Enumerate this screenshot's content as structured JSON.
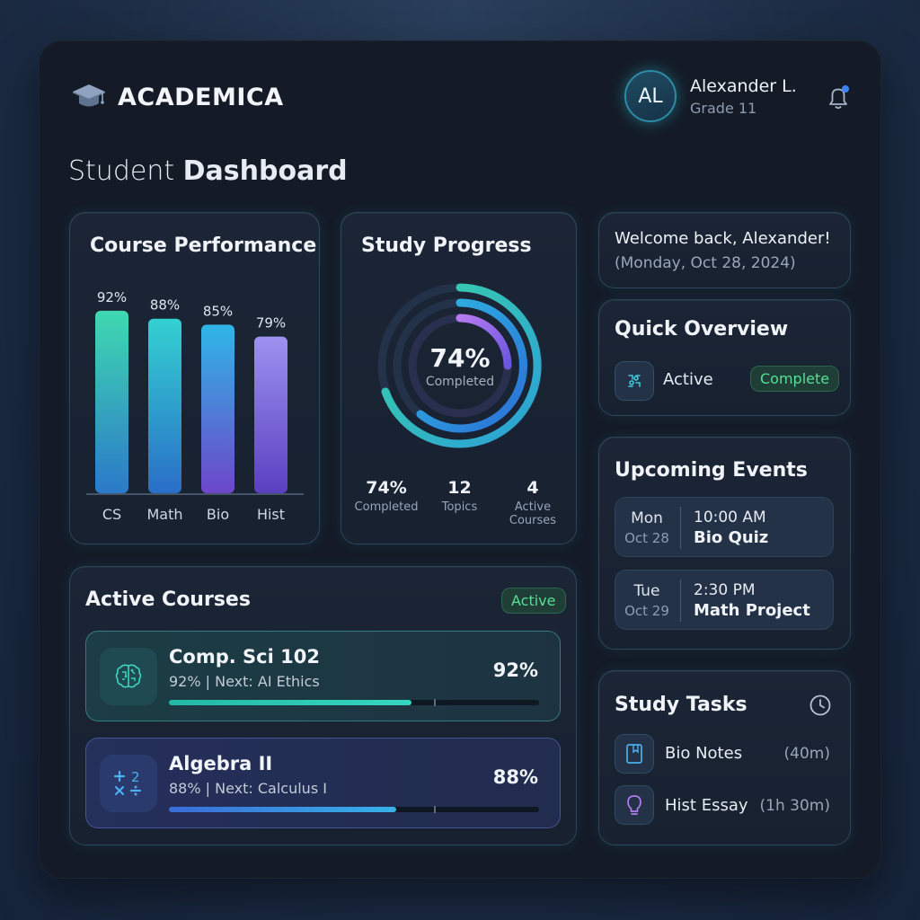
{
  "header": {
    "brand": "ACADEMICA",
    "user_initials": "AL",
    "user_name": "Alexander L.",
    "user_grade": "Grade 11",
    "notification_dot_color": "#3b82f6"
  },
  "page": {
    "title_light": "Student",
    "title_bold": "Dashboard"
  },
  "course_performance": {
    "title": "Course Performance",
    "chart_data": {
      "type": "bar",
      "categories": [
        "CS",
        "Math",
        "Bio",
        "Hist"
      ],
      "values": [
        92,
        88,
        85,
        79
      ],
      "value_labels": [
        "92%",
        "88%",
        "85%",
        "79%"
      ],
      "ylim": [
        0,
        100
      ],
      "bar_colors": [
        [
          "#3fd9b0",
          "#2b79c9"
        ],
        [
          "#33d1d1",
          "#2a6ec7"
        ],
        [
          "#2fb6e6",
          "#6d46c9"
        ],
        [
          "#9c92f0",
          "#5a3fc0"
        ]
      ]
    }
  },
  "study_progress": {
    "title": "Study Progress",
    "ring_percent": 74,
    "ring_value": "74%",
    "ring_label": "Completed",
    "stats": [
      {
        "value": "74%",
        "label": "Completed"
      },
      {
        "value": "12",
        "label": "Topics"
      },
      {
        "value": "4",
        "label": "Active Courses"
      }
    ]
  },
  "welcome": {
    "line": "Welcome back, Alexander!",
    "date": "(Monday, Oct 28, 2024)"
  },
  "quick_overview": {
    "title": "Quick Overview",
    "label": "Active",
    "badge": "Complete"
  },
  "events": {
    "title": "Upcoming Events",
    "items": [
      {
        "day": "Mon",
        "date": "Oct 28",
        "time": "10:00 AM",
        "name": "Bio Quiz"
      },
      {
        "day": "Tue",
        "date": "Oct 29",
        "time": "2:30 PM",
        "name": "Math Project"
      }
    ]
  },
  "active_courses": {
    "title": "Active Courses",
    "badge": "Active",
    "items": [
      {
        "name": "Comp. Sci 102",
        "meta": "92% | Next: AI Ethics",
        "pct": "92%",
        "progress": 0.655,
        "icon": "brain-icon"
      },
      {
        "name": "Algebra II",
        "meta": "88% | Next: Calculus I",
        "pct": "88%",
        "progress": 0.615,
        "icon": "math-symbols-icon"
      }
    ]
  },
  "study_tasks": {
    "title": "Study Tasks",
    "items": [
      {
        "name": "Bio Notes",
        "time": "(40m)",
        "icon": "book-icon"
      },
      {
        "name": "Hist Essay",
        "time": "(1h 30m)",
        "icon": "lightbulb-icon"
      }
    ]
  }
}
